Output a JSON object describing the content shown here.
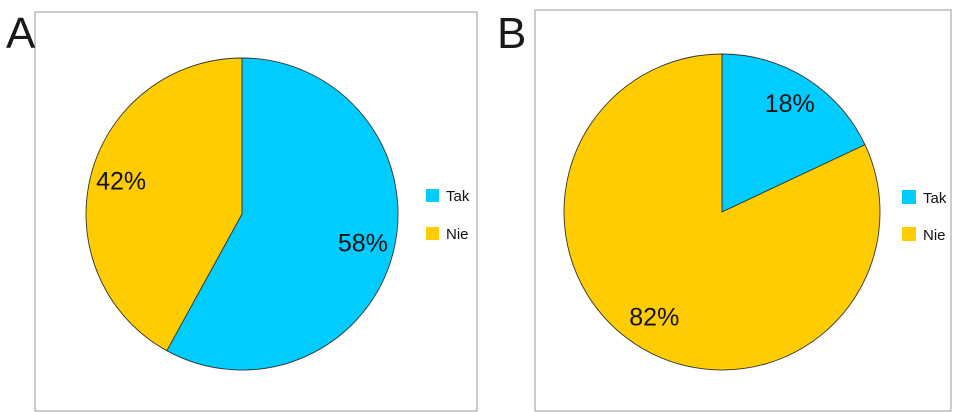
{
  "chart_data": [
    {
      "type": "pie",
      "panel_label": "A",
      "categories": [
        "Tak",
        "Nie"
      ],
      "values": [
        58,
        42
      ],
      "labels": [
        "58%",
        "42%"
      ],
      "colors": [
        "#00CCFF",
        "#FFCC00"
      ],
      "legend": {
        "entries": [
          "Tak",
          "Nie"
        ],
        "position": "right"
      },
      "start_angle": "12 o'clock",
      "direction": "clockwise"
    },
    {
      "type": "pie",
      "panel_label": "B",
      "categories": [
        "Tak",
        "Nie"
      ],
      "values": [
        18,
        82
      ],
      "labels": [
        "18%",
        "82%"
      ],
      "colors": [
        "#00CCFF",
        "#FFCC00"
      ],
      "legend": {
        "entries": [
          "Tak",
          "Nie"
        ],
        "position": "right"
      },
      "start_angle": "12 o'clock",
      "direction": "clockwise"
    }
  ]
}
